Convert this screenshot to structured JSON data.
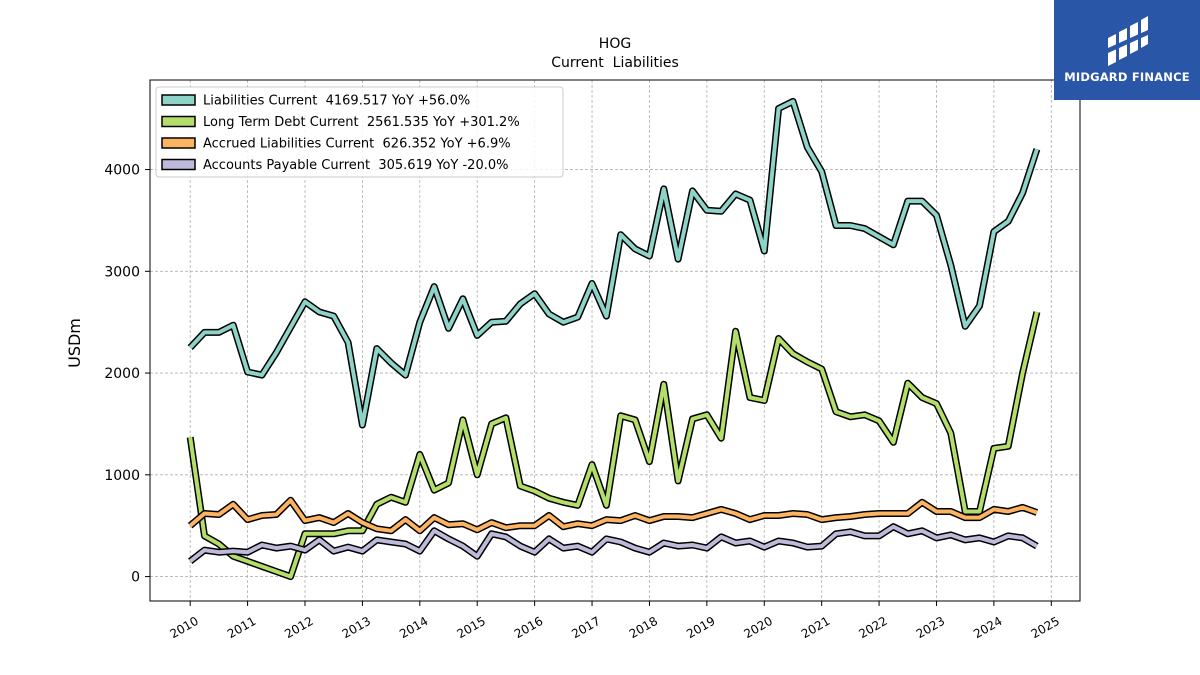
{
  "brand": {
    "name": "MIDGARD FINANCE",
    "bg_color": "#2a56a8"
  },
  "chart_data": {
    "type": "line",
    "title": "HOG",
    "subtitle": "Current  Liabilities",
    "xlabel": "",
    "ylabel": "USDm",
    "xlim": [
      2009.3,
      2025.5
    ],
    "ylim": [
      -240,
      4880
    ],
    "x_ticks": [
      2010,
      2011,
      2012,
      2013,
      2014,
      2015,
      2016,
      2017,
      2018,
      2019,
      2020,
      2021,
      2022,
      2023,
      2024,
      2025
    ],
    "y_ticks": [
      0,
      1000,
      2000,
      3000,
      4000
    ],
    "grid": true,
    "legend_position": "top-left",
    "series": [
      {
        "name": "Liabilities Current  4169.517 YoY +56.0%",
        "color": "#8dd3c7",
        "points": [
          [
            2010.0,
            2250
          ],
          [
            2010.25,
            2400
          ],
          [
            2010.5,
            2400
          ],
          [
            2010.75,
            2470
          ],
          [
            2011.0,
            2010
          ],
          [
            2011.25,
            1980
          ],
          [
            2011.5,
            2200
          ],
          [
            2011.75,
            2450
          ],
          [
            2012.0,
            2700
          ],
          [
            2012.25,
            2600
          ],
          [
            2012.5,
            2560
          ],
          [
            2012.75,
            2300
          ],
          [
            2013.0,
            1490
          ],
          [
            2013.25,
            2240
          ],
          [
            2013.5,
            2100
          ],
          [
            2013.75,
            1980
          ],
          [
            2014.0,
            2500
          ],
          [
            2014.25,
            2850
          ],
          [
            2014.5,
            2440
          ],
          [
            2014.75,
            2730
          ],
          [
            2015.0,
            2370
          ],
          [
            2015.25,
            2500
          ],
          [
            2015.5,
            2510
          ],
          [
            2015.75,
            2680
          ],
          [
            2016.0,
            2780
          ],
          [
            2016.25,
            2580
          ],
          [
            2016.5,
            2500
          ],
          [
            2016.75,
            2550
          ],
          [
            2017.0,
            2880
          ],
          [
            2017.25,
            2560
          ],
          [
            2017.5,
            3360
          ],
          [
            2017.75,
            3220
          ],
          [
            2018.0,
            3150
          ],
          [
            2018.25,
            3810
          ],
          [
            2018.5,
            3120
          ],
          [
            2018.75,
            3790
          ],
          [
            2019.0,
            3600
          ],
          [
            2019.25,
            3590
          ],
          [
            2019.5,
            3760
          ],
          [
            2019.75,
            3700
          ],
          [
            2020.0,
            3200
          ],
          [
            2020.25,
            4600
          ],
          [
            2020.5,
            4670
          ],
          [
            2020.75,
            4220
          ],
          [
            2021.0,
            3980
          ],
          [
            2021.25,
            3450
          ],
          [
            2021.5,
            3450
          ],
          [
            2021.75,
            3420
          ],
          [
            2022.0,
            3340
          ],
          [
            2022.25,
            3260
          ],
          [
            2022.5,
            3690
          ],
          [
            2022.75,
            3690
          ],
          [
            2023.0,
            3550
          ],
          [
            2023.25,
            3060
          ],
          [
            2023.5,
            2460
          ],
          [
            2023.75,
            2660
          ],
          [
            2024.0,
            3390
          ],
          [
            2024.25,
            3490
          ],
          [
            2024.5,
            3770
          ],
          [
            2024.75,
            4200
          ]
        ]
      },
      {
        "name": "Long Term Debt Current  2561.535 YoY +301.2%",
        "color": "#b3de69",
        "points": [
          [
            2010.0,
            1370
          ],
          [
            2010.25,
            400
          ],
          [
            2010.5,
            320
          ],
          [
            2010.75,
            200
          ],
          [
            2011.0,
            150
          ],
          [
            2011.25,
            100
          ],
          [
            2011.5,
            50
          ],
          [
            2011.75,
            0
          ],
          [
            2012.0,
            420
          ],
          [
            2012.25,
            420
          ],
          [
            2012.5,
            420
          ],
          [
            2012.75,
            450
          ],
          [
            2013.0,
            450
          ],
          [
            2013.25,
            710
          ],
          [
            2013.5,
            780
          ],
          [
            2013.75,
            730
          ],
          [
            2014.0,
            1200
          ],
          [
            2014.25,
            850
          ],
          [
            2014.5,
            920
          ],
          [
            2014.75,
            1540
          ],
          [
            2015.0,
            1000
          ],
          [
            2015.25,
            1500
          ],
          [
            2015.5,
            1560
          ],
          [
            2015.75,
            890
          ],
          [
            2016.0,
            840
          ],
          [
            2016.25,
            770
          ],
          [
            2016.5,
            730
          ],
          [
            2016.75,
            700
          ],
          [
            2017.0,
            1100
          ],
          [
            2017.25,
            700
          ],
          [
            2017.5,
            1580
          ],
          [
            2017.75,
            1540
          ],
          [
            2018.0,
            1130
          ],
          [
            2018.25,
            1890
          ],
          [
            2018.5,
            940
          ],
          [
            2018.75,
            1550
          ],
          [
            2019.0,
            1590
          ],
          [
            2019.25,
            1360
          ],
          [
            2019.5,
            2410
          ],
          [
            2019.75,
            1760
          ],
          [
            2020.0,
            1730
          ],
          [
            2020.25,
            2340
          ],
          [
            2020.5,
            2190
          ],
          [
            2020.75,
            2110
          ],
          [
            2021.0,
            2040
          ],
          [
            2021.25,
            1620
          ],
          [
            2021.5,
            1570
          ],
          [
            2021.75,
            1590
          ],
          [
            2022.0,
            1530
          ],
          [
            2022.25,
            1320
          ],
          [
            2022.5,
            1900
          ],
          [
            2022.75,
            1760
          ],
          [
            2023.0,
            1700
          ],
          [
            2023.25,
            1410
          ],
          [
            2023.5,
            640
          ],
          [
            2023.75,
            640
          ],
          [
            2024.0,
            1260
          ],
          [
            2024.25,
            1280
          ],
          [
            2024.5,
            2000
          ],
          [
            2024.75,
            2600
          ]
        ]
      },
      {
        "name": "Accrued Liabilities Current  626.352 YoY +6.9%",
        "color": "#fdb462",
        "points": [
          [
            2010.0,
            500
          ],
          [
            2010.25,
            620
          ],
          [
            2010.5,
            610
          ],
          [
            2010.75,
            710
          ],
          [
            2011.0,
            560
          ],
          [
            2011.25,
            600
          ],
          [
            2011.5,
            610
          ],
          [
            2011.75,
            750
          ],
          [
            2012.0,
            550
          ],
          [
            2012.25,
            580
          ],
          [
            2012.5,
            530
          ],
          [
            2012.75,
            620
          ],
          [
            2013.0,
            530
          ],
          [
            2013.25,
            470
          ],
          [
            2013.5,
            450
          ],
          [
            2013.75,
            560
          ],
          [
            2014.0,
            450
          ],
          [
            2014.25,
            580
          ],
          [
            2014.5,
            510
          ],
          [
            2014.75,
            520
          ],
          [
            2015.0,
            460
          ],
          [
            2015.25,
            530
          ],
          [
            2015.5,
            480
          ],
          [
            2015.75,
            500
          ],
          [
            2016.0,
            500
          ],
          [
            2016.25,
            600
          ],
          [
            2016.5,
            490
          ],
          [
            2016.75,
            520
          ],
          [
            2017.0,
            500
          ],
          [
            2017.25,
            560
          ],
          [
            2017.5,
            550
          ],
          [
            2017.75,
            600
          ],
          [
            2018.0,
            550
          ],
          [
            2018.25,
            590
          ],
          [
            2018.5,
            590
          ],
          [
            2018.75,
            580
          ],
          [
            2019.0,
            620
          ],
          [
            2019.25,
            660
          ],
          [
            2019.5,
            620
          ],
          [
            2019.75,
            560
          ],
          [
            2020.0,
            600
          ],
          [
            2020.25,
            600
          ],
          [
            2020.5,
            620
          ],
          [
            2020.75,
            610
          ],
          [
            2021.0,
            560
          ],
          [
            2021.25,
            580
          ],
          [
            2021.5,
            590
          ],
          [
            2021.75,
            610
          ],
          [
            2022.0,
            620
          ],
          [
            2022.25,
            620
          ],
          [
            2022.5,
            620
          ],
          [
            2022.75,
            730
          ],
          [
            2023.0,
            640
          ],
          [
            2023.25,
            640
          ],
          [
            2023.5,
            580
          ],
          [
            2023.75,
            580
          ],
          [
            2024.0,
            660
          ],
          [
            2024.25,
            640
          ],
          [
            2024.5,
            680
          ],
          [
            2024.75,
            630
          ]
        ]
      },
      {
        "name": "Accounts Payable Current  305.619 YoY -20.0%",
        "color": "#bebada",
        "points": [
          [
            2010.0,
            150
          ],
          [
            2010.25,
            260
          ],
          [
            2010.5,
            240
          ],
          [
            2010.75,
            250
          ],
          [
            2011.0,
            240
          ],
          [
            2011.25,
            310
          ],
          [
            2011.5,
            280
          ],
          [
            2011.75,
            300
          ],
          [
            2012.0,
            260
          ],
          [
            2012.25,
            360
          ],
          [
            2012.5,
            250
          ],
          [
            2012.75,
            290
          ],
          [
            2013.0,
            250
          ],
          [
            2013.25,
            360
          ],
          [
            2013.5,
            340
          ],
          [
            2013.75,
            320
          ],
          [
            2014.0,
            250
          ],
          [
            2014.25,
            450
          ],
          [
            2014.5,
            370
          ],
          [
            2014.75,
            300
          ],
          [
            2015.0,
            200
          ],
          [
            2015.25,
            420
          ],
          [
            2015.5,
            390
          ],
          [
            2015.75,
            300
          ],
          [
            2016.0,
            240
          ],
          [
            2016.25,
            370
          ],
          [
            2016.5,
            280
          ],
          [
            2016.75,
            300
          ],
          [
            2017.0,
            240
          ],
          [
            2017.25,
            370
          ],
          [
            2017.5,
            340
          ],
          [
            2017.75,
            280
          ],
          [
            2018.0,
            240
          ],
          [
            2018.25,
            330
          ],
          [
            2018.5,
            300
          ],
          [
            2018.75,
            310
          ],
          [
            2019.0,
            280
          ],
          [
            2019.25,
            390
          ],
          [
            2019.5,
            330
          ],
          [
            2019.75,
            350
          ],
          [
            2020.0,
            290
          ],
          [
            2020.25,
            350
          ],
          [
            2020.5,
            330
          ],
          [
            2020.75,
            290
          ],
          [
            2021.0,
            300
          ],
          [
            2021.25,
            420
          ],
          [
            2021.5,
            440
          ],
          [
            2021.75,
            400
          ],
          [
            2022.0,
            400
          ],
          [
            2022.25,
            490
          ],
          [
            2022.5,
            420
          ],
          [
            2022.75,
            450
          ],
          [
            2023.0,
            380
          ],
          [
            2023.25,
            410
          ],
          [
            2023.5,
            360
          ],
          [
            2023.75,
            380
          ],
          [
            2024.0,
            340
          ],
          [
            2024.25,
            400
          ],
          [
            2024.5,
            380
          ],
          [
            2024.75,
            300
          ]
        ]
      }
    ]
  }
}
